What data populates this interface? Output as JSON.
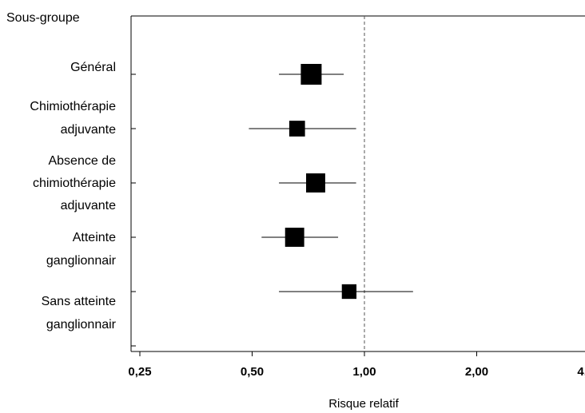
{
  "chart_data": {
    "type": "forest",
    "header": "Sous-groupe",
    "xlabel": "Risque relatif",
    "x_scale": "log",
    "xlim": [
      0.25,
      4.0
    ],
    "xticks": [
      0.25,
      0.5,
      1.0,
      2.0,
      4.0
    ],
    "xtick_labels": [
      "0,25",
      "0,50",
      "1,00",
      "2,00",
      "4,00"
    ],
    "reference_line": 1.0,
    "rows": [
      {
        "label_lines": [
          "Général"
        ],
        "estimate": 0.72,
        "ci_low": 0.59,
        "ci_high": 0.88,
        "weight": 1.0
      },
      {
        "label_lines": [
          "Chimiothérapie",
          "adjuvante"
        ],
        "estimate": 0.66,
        "ci_low": 0.49,
        "ci_high": 0.95,
        "weight": 0.55
      },
      {
        "label_lines": [
          "Absence de",
          "chimiothérapie",
          "adjuvante"
        ],
        "estimate": 0.74,
        "ci_low": 0.59,
        "ci_high": 0.95,
        "weight": 0.85
      },
      {
        "label_lines": [
          "Atteinte",
          "ganglionnair"
        ],
        "estimate": 0.65,
        "ci_low": 0.53,
        "ci_high": 0.85,
        "weight": 0.85
      },
      {
        "label_lines": [
          "Sans atteinte",
          "ganglionnair"
        ],
        "estimate": 0.91,
        "ci_low": 0.59,
        "ci_high": 1.35,
        "weight": 0.45
      }
    ]
  }
}
